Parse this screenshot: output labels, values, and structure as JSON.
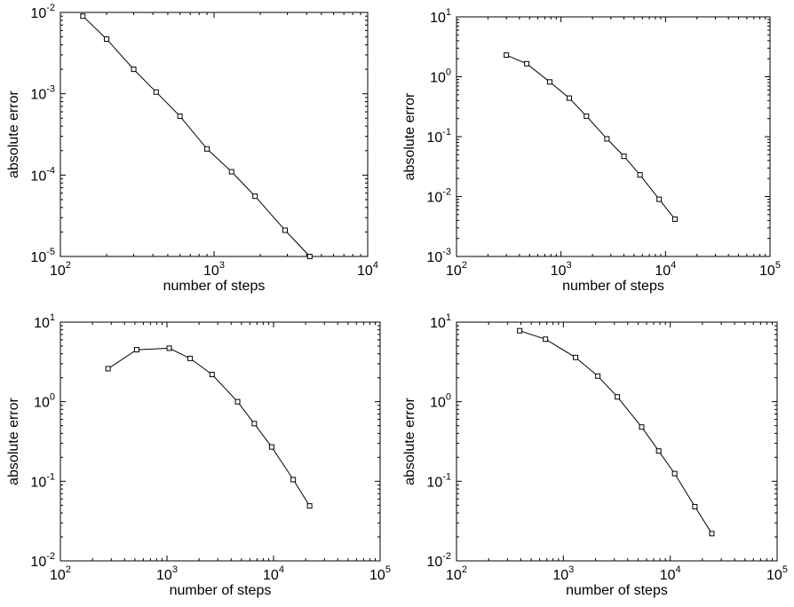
{
  "chart_data": [
    {
      "type": "line",
      "xscale": "log",
      "yscale": "log",
      "xlim": [
        100,
        10000
      ],
      "ylim": [
        1e-05,
        0.01
      ],
      "xlabel": "number of steps",
      "ylabel": "absolute error",
      "xticks": [
        {
          "base": "10",
          "exp": "2"
        },
        {
          "base": "10",
          "exp": "3"
        },
        {
          "base": "10",
          "exp": "4"
        }
      ],
      "yticks": [
        {
          "base": "10",
          "exp": "-5"
        },
        {
          "base": "10",
          "exp": "-4"
        },
        {
          "base": "10",
          "exp": "-3"
        },
        {
          "base": "10",
          "exp": "-2"
        }
      ],
      "marker": "square",
      "grid": false,
      "line_color": "#000000",
      "series": [
        {
          "x": [
            140,
            200,
            300,
            420,
            600,
            900,
            1300,
            1850,
            2900,
            4200
          ],
          "y": [
            0.009,
            0.0047,
            0.002,
            0.00105,
            0.00053,
            0.00021,
            0.00011,
            5.5e-05,
            2.1e-05,
            1e-05
          ]
        }
      ]
    },
    {
      "type": "line",
      "xscale": "log",
      "yscale": "log",
      "xlim": [
        100,
        100000
      ],
      "ylim": [
        0.001,
        10
      ],
      "xlabel": "number of steps",
      "ylabel": "absolute error",
      "xticks": [
        {
          "base": "10",
          "exp": "2"
        },
        {
          "base": "10",
          "exp": "3"
        },
        {
          "base": "10",
          "exp": "4"
        },
        {
          "base": "10",
          "exp": "5"
        }
      ],
      "yticks": [
        {
          "base": "10",
          "exp": "-3"
        },
        {
          "base": "10",
          "exp": "-2"
        },
        {
          "base": "10",
          "exp": "-1"
        },
        {
          "base": "10",
          "exp": "0"
        },
        {
          "base": "10",
          "exp": "1"
        }
      ],
      "marker": "square",
      "grid": false,
      "line_color": "#000000",
      "series": [
        {
          "x": [
            300,
            470,
            780,
            1200,
            1750,
            2750,
            4000,
            5700,
            8700,
            12300
          ],
          "y": [
            2.3,
            1.65,
            0.82,
            0.44,
            0.22,
            0.092,
            0.047,
            0.023,
            0.009,
            0.0042
          ]
        }
      ]
    },
    {
      "type": "line",
      "xscale": "log",
      "yscale": "log",
      "xlim": [
        100,
        100000
      ],
      "ylim": [
        0.01,
        10
      ],
      "xlabel": "number of steps",
      "ylabel": "absolute error",
      "xticks": [
        {
          "base": "10",
          "exp": "2"
        },
        {
          "base": "10",
          "exp": "3"
        },
        {
          "base": "10",
          "exp": "4"
        },
        {
          "base": "10",
          "exp": "5"
        }
      ],
      "yticks": [
        {
          "base": "10",
          "exp": "-2"
        },
        {
          "base": "10",
          "exp": "-1"
        },
        {
          "base": "10",
          "exp": "0"
        },
        {
          "base": "10",
          "exp": "1"
        }
      ],
      "marker": "square",
      "grid": false,
      "line_color": "#000000",
      "series": [
        {
          "x": [
            280,
            520,
            1050,
            1650,
            2650,
            4600,
            6600,
            9600,
            15300,
            21800
          ],
          "y": [
            2.6,
            4.5,
            4.7,
            3.5,
            2.2,
            1.0,
            0.53,
            0.27,
            0.105,
            0.049
          ]
        }
      ]
    },
    {
      "type": "line",
      "xscale": "log",
      "yscale": "log",
      "xlim": [
        100,
        100000
      ],
      "ylim": [
        0.01,
        10
      ],
      "xlabel": "number of steps",
      "ylabel": "absolute error",
      "xticks": [
        {
          "base": "10",
          "exp": "2"
        },
        {
          "base": "10",
          "exp": "3"
        },
        {
          "base": "10",
          "exp": "4"
        },
        {
          "base": "10",
          "exp": "5"
        }
      ],
      "yticks": [
        {
          "base": "10",
          "exp": "-2"
        },
        {
          "base": "10",
          "exp": "-1"
        },
        {
          "base": "10",
          "exp": "0"
        },
        {
          "base": "10",
          "exp": "1"
        }
      ],
      "marker": "square",
      "grid": false,
      "line_color": "#000000",
      "series": [
        {
          "x": [
            390,
            680,
            1300,
            2100,
            3200,
            5400,
            7800,
            11000,
            17000,
            24500
          ],
          "y": [
            7.8,
            6.1,
            3.6,
            2.1,
            1.15,
            0.48,
            0.24,
            0.125,
            0.048,
            0.022
          ]
        }
      ]
    }
  ]
}
